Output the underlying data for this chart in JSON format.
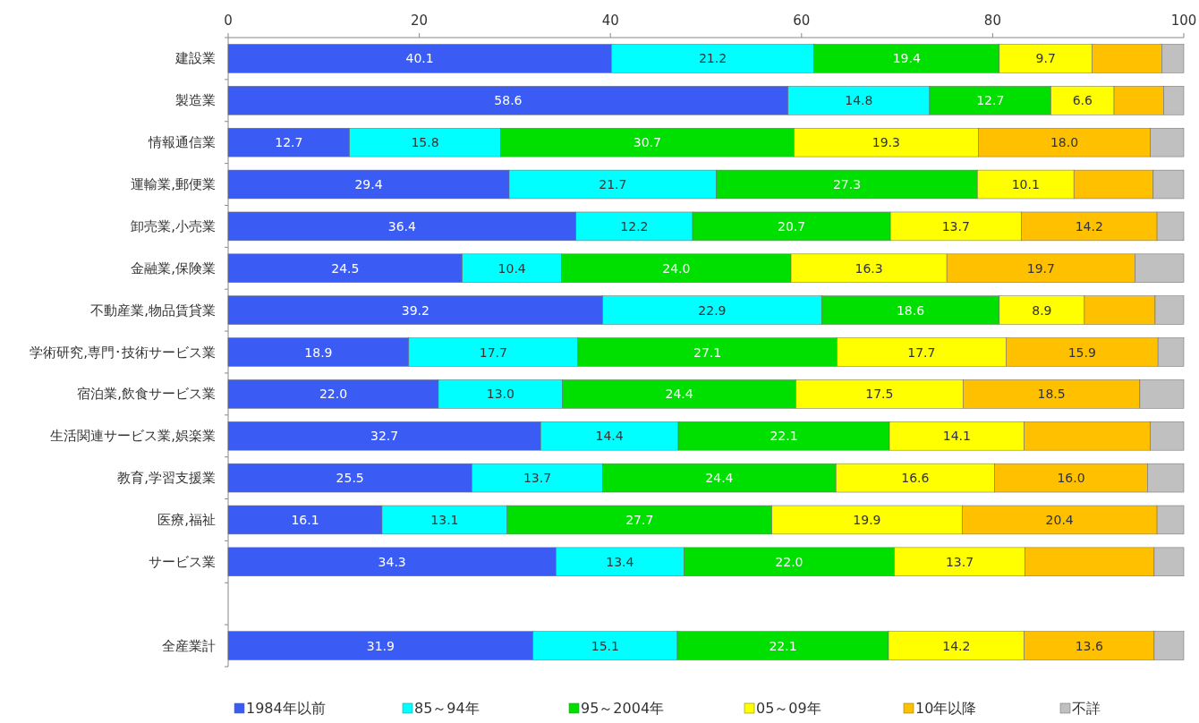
{
  "chart_data": {
    "type": "bar",
    "orientation": "horizontal",
    "stacked": true,
    "legend": "bottom",
    "categories": [
      "建設業",
      "製造業",
      "情報通信業",
      "運輸業,郵便業",
      "卸売業,小売業",
      "金融業,保険業",
      "不動産業,物品賃貸業",
      "学術研究,専門･技術サービス業",
      "宿泊業,飲食サービス業",
      "生活関連サービス業,娯楽業",
      "教育,学習支援業",
      "医療,福祉",
      "サービス業",
      null,
      "全産業計"
    ],
    "xlim": [
      0,
      100
    ],
    "xticks": [
      0,
      20,
      40,
      60,
      80,
      100
    ],
    "series": [
      {
        "name": "1984年以前",
        "color": "#3a5cf5",
        "values": [
          40.1,
          58.6,
          12.7,
          29.4,
          36.4,
          24.5,
          39.2,
          18.9,
          22.0,
          32.7,
          25.5,
          16.1,
          34.3,
          null,
          31.9
        ],
        "value_labels": [
          "40.1",
          "58.6",
          "12.7",
          "29.4",
          "36.4",
          "24.5",
          "39.2",
          "18.9",
          "22.0",
          "32.7",
          "25.5",
          "16.1",
          "34.3",
          null,
          "31.9"
        ]
      },
      {
        "name": "85～94年",
        "color": "#00ffff",
        "values": [
          21.2,
          14.8,
          15.8,
          21.7,
          12.2,
          10.4,
          22.9,
          17.7,
          13.0,
          14.4,
          13.7,
          13.1,
          13.4,
          null,
          15.1
        ],
        "value_labels": [
          "21.2",
          "14.8",
          "15.8",
          "21.7",
          "12.2",
          "10.4",
          "22.9",
          "17.7",
          "13.0",
          "14.4",
          "13.7",
          "13.1",
          "13.4",
          null,
          "15.1"
        ]
      },
      {
        "name": "95～2004年",
        "color": "#00e000",
        "values": [
          19.4,
          12.7,
          30.7,
          27.3,
          20.7,
          24.0,
          18.6,
          27.1,
          24.4,
          22.1,
          24.4,
          27.7,
          22.0,
          null,
          22.1
        ],
        "value_labels": [
          "19.4",
          "12.7",
          "30.7",
          "27.3",
          "20.7",
          "24.0",
          "18.6",
          "27.1",
          "24.4",
          "22.1",
          "24.4",
          "27.7",
          "22.0",
          null,
          "22.1"
        ]
      },
      {
        "name": "05～09年",
        "color": "#ffff00",
        "values": [
          9.7,
          6.6,
          19.3,
          10.1,
          13.7,
          16.3,
          8.9,
          17.7,
          17.5,
          14.1,
          16.6,
          19.9,
          13.7,
          null,
          14.2
        ],
        "value_labels": [
          "9.7",
          "6.6",
          "19.3",
          "10.1",
          "13.7",
          "16.3",
          "8.9",
          "17.7",
          "17.5",
          "14.1",
          "16.6",
          "19.9",
          "13.7",
          null,
          "14.2"
        ]
      },
      {
        "name": "10年以降",
        "color": "#ffc000",
        "values": [
          7.3,
          5.2,
          18.0,
          8.3,
          14.2,
          19.7,
          7.4,
          15.9,
          18.5,
          13.2,
          16.0,
          20.4,
          13.5,
          null,
          13.6
        ],
        "value_labels": [
          null,
          null,
          "18.0",
          null,
          "14.2",
          "19.7",
          null,
          "15.9",
          "18.5",
          null,
          "16.0",
          "20.4",
          null,
          null,
          "13.6"
        ]
      },
      {
        "name": "不詳",
        "color": "#c0c0c0",
        "values": [
          2.3,
          2.1,
          3.5,
          3.2,
          2.8,
          5.1,
          3.0,
          2.7,
          4.6,
          3.5,
          3.8,
          2.8,
          3.1,
          null,
          3.1
        ],
        "value_labels": [
          null,
          null,
          null,
          null,
          null,
          null,
          null,
          null,
          null,
          null,
          null,
          null,
          null,
          null,
          null
        ]
      }
    ]
  }
}
